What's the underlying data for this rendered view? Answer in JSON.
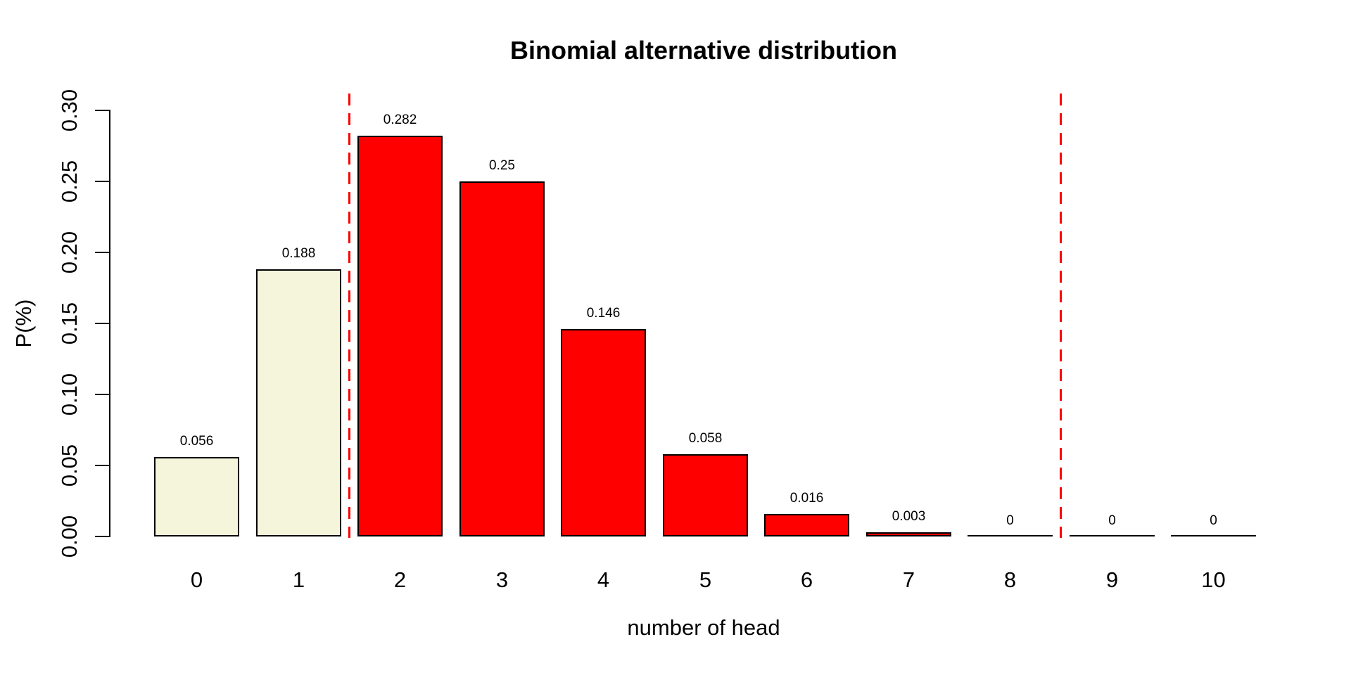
{
  "chart_data": {
    "type": "bar",
    "title": "Binomial alternative distribution",
    "xlabel": "number of head",
    "ylabel": "P(%)",
    "categories": [
      "0",
      "1",
      "2",
      "3",
      "4",
      "5",
      "6",
      "7",
      "8",
      "9",
      "10"
    ],
    "values": [
      0.056,
      0.188,
      0.282,
      0.25,
      0.146,
      0.058,
      0.016,
      0.003,
      0,
      0,
      0
    ],
    "value_labels": [
      "0.056",
      "0.188",
      "0.282",
      "0.25",
      "0.146",
      "0.058",
      "0.016",
      "0.003",
      "0",
      "0",
      "0"
    ],
    "bar_colors": [
      "#F5F5DC",
      "#F5F5DC",
      "#FF0000",
      "#FF0000",
      "#FF0000",
      "#FF0000",
      "#FF0000",
      "#FF0000",
      "#FF0000",
      "#FF0000",
      "#FF0000"
    ],
    "bar_border_color": "#000000",
    "y_ticks": [
      0,
      0.05,
      0.1,
      0.15,
      0.2,
      0.25,
      0.3
    ],
    "y_tick_labels": [
      "0.00",
      "0.05",
      "0.10",
      "0.15",
      "0.20",
      "0.25",
      "0.30"
    ],
    "ylim": [
      0,
      0.3
    ],
    "reference_lines": {
      "positions": [
        1.5,
        8.5
      ],
      "color": "#FF0000",
      "style": "dashed"
    },
    "grid": false,
    "legend": false
  }
}
